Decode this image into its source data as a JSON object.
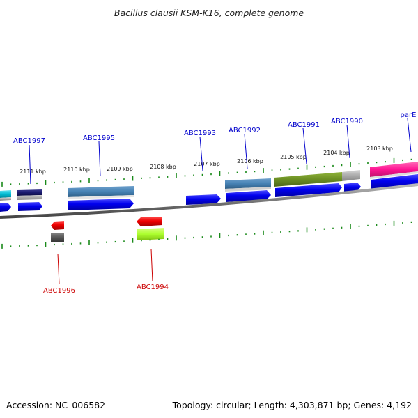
{
  "title": "Bacillus clausii KSM-K16, complete genome",
  "footer": {
    "accession": "Accession: NC_006582",
    "summary": "Topology: circular; Length: 4,303,871 bp; Genes: 4,192"
  },
  "colors": {
    "forward_label": "#0000cc",
    "reverse_label": "#cc0000",
    "tick": "#1a8a1a",
    "backbone": "#777777"
  },
  "scale_labels": [
    "2111 kbp",
    "2110 kbp",
    "2109 kbp",
    "2108 kbp",
    "2107 kbp",
    "2106 kbp",
    "2105 kbp",
    "2104 kbp",
    "2103 kbp"
  ],
  "forward_labels": [
    "ABC1997",
    "ABC1995",
    "ABC1993",
    "ABC1992",
    "ABC1991",
    "ABC1990",
    "parE"
  ],
  "reverse_labels": [
    "ABC1996",
    "ABC1994"
  ],
  "track_colors": {
    "forward_cds": "#0000ee",
    "reverse_cds": "#ee0000",
    "steelblue": "#4682b4",
    "navy": "#1a1a6e",
    "olive": "#6b8e23",
    "pink": "#ff1493",
    "cyan": "#00bcd4",
    "grey": "#aaaaaa",
    "darkgrey": "#555555",
    "lime": "#adff2f"
  }
}
